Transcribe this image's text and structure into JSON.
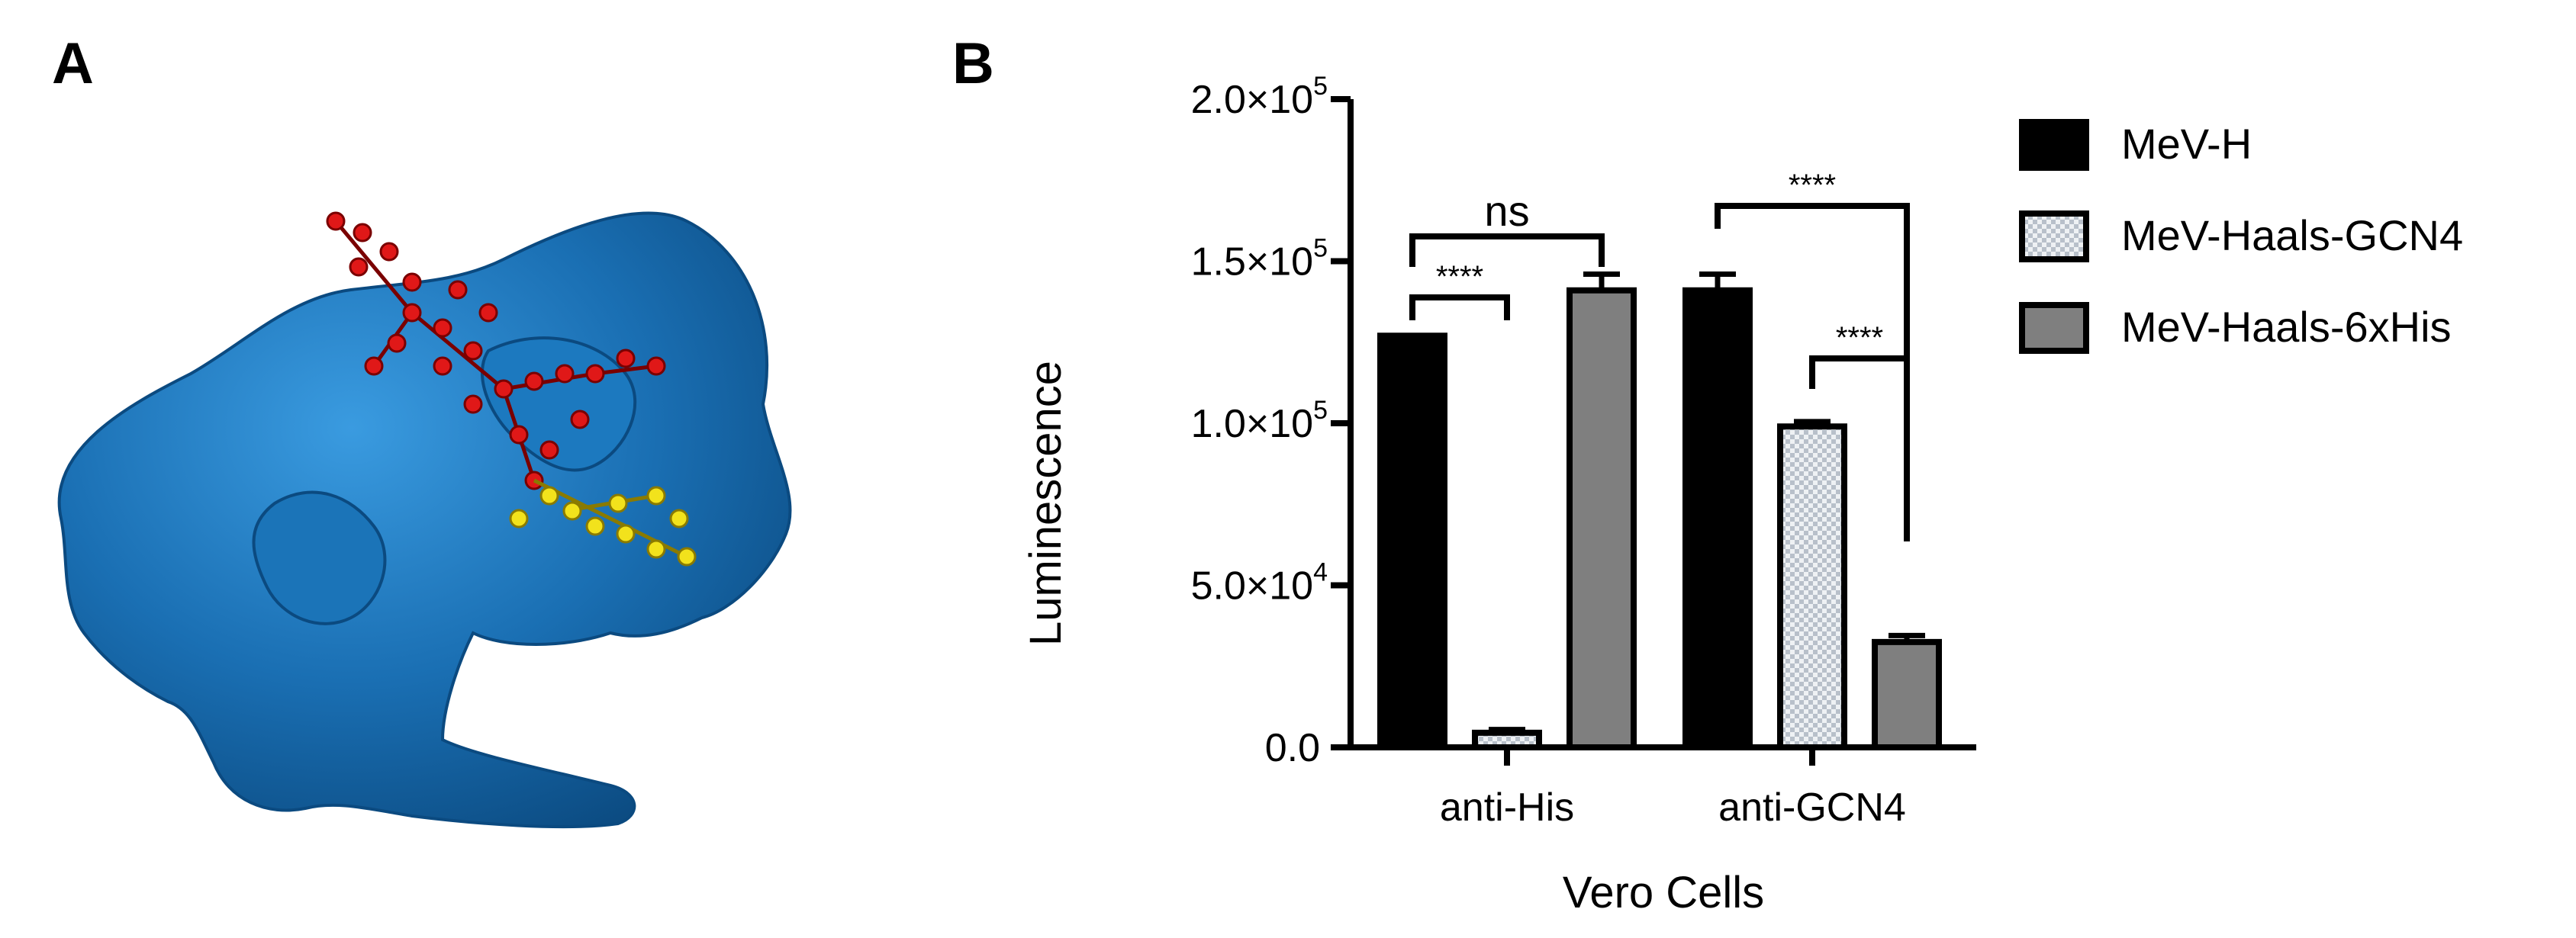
{
  "panels": {
    "a_label": "A",
    "b_label": "B"
  },
  "colors": {
    "protein_surface": "#1a6fb3",
    "glycan_red": "#e01818",
    "glycan_yellow": "#f2e21c",
    "series_black": "#000000",
    "series_checker": "#dfe4ea",
    "series_gray": "#7f7f7f"
  },
  "chart_data": {
    "type": "bar",
    "xlabel": "Vero Cells",
    "ylabel": "Luminescence",
    "ylim": [
      0,
      200000
    ],
    "y_ticks": [
      {
        "value": 0,
        "mantissa": "0.0",
        "exponent": ""
      },
      {
        "value": 50000,
        "mantissa": "5.0×10",
        "exponent": "4"
      },
      {
        "value": 100000,
        "mantissa": "1.0×10",
        "exponent": "5"
      },
      {
        "value": 150000,
        "mantissa": "1.5×10",
        "exponent": "5"
      },
      {
        "value": 200000,
        "mantissa": "2.0×10",
        "exponent": "5"
      }
    ],
    "categories": [
      "anti-His",
      "anti-GCN4"
    ],
    "series": [
      {
        "name": "MeV-H",
        "values": [
          127000,
          141000
        ],
        "errors": [
          0,
          5000
        ],
        "fill": "black"
      },
      {
        "name": "MeV-Haals-GCN4",
        "values": [
          4500,
          99000
        ],
        "errors": [
          1000,
          1500
        ],
        "fill": "checker"
      },
      {
        "name": "MeV-Haals-6xHis",
        "values": [
          141000,
          32500
        ],
        "errors": [
          5000,
          2000
        ],
        "fill": "gray"
      }
    ],
    "legend": "right",
    "grid": false,
    "significance": [
      {
        "group": 0,
        "from_series": 0,
        "to_series": 2,
        "label": "ns"
      },
      {
        "group": 0,
        "from_series": 0,
        "to_series": 1,
        "label": "****"
      },
      {
        "group": 1,
        "from_series": 0,
        "to_series": 2,
        "label": "****"
      },
      {
        "group": 1,
        "from_series": 1,
        "to_series": 2,
        "label": "****"
      }
    ]
  }
}
